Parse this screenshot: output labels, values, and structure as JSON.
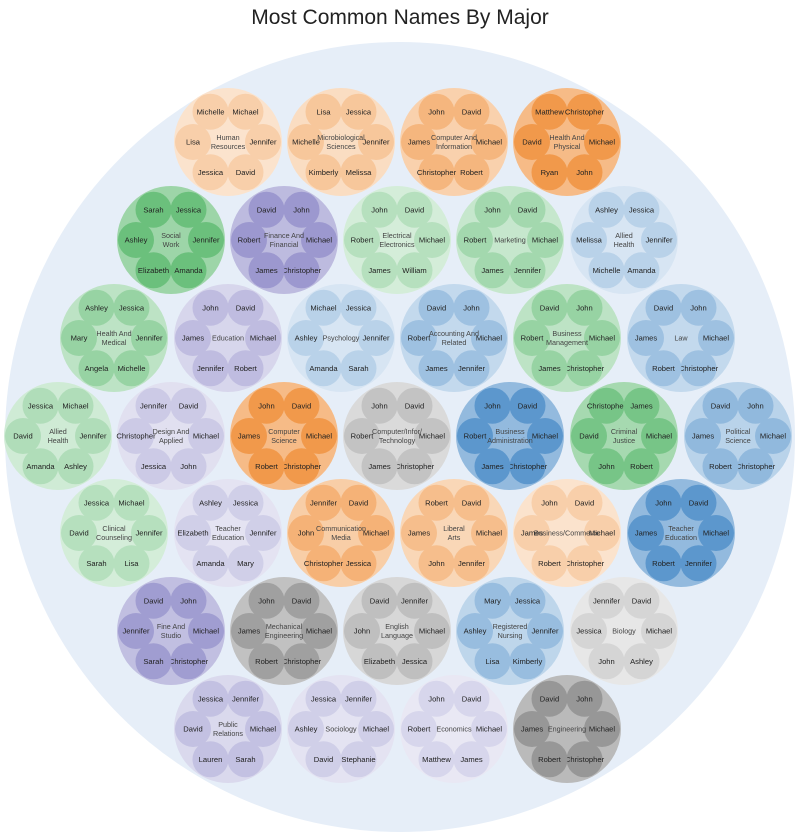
{
  "chart_data": {
    "type": "packed-bubble",
    "title": "Most Common Names By Major",
    "colors": {
      "background_circle": "#e6eef8",
      "orange": "#f0913c",
      "blue": "#4f8fc9",
      "green": "#58b86b",
      "purple": "#8a86c6",
      "gray": "#8a8a8a"
    },
    "majors": [
      {
        "label": "Human\nResources",
        "color": "orange",
        "intensity": 0.25,
        "names": [
          "Michelle",
          "Michael",
          "Jennifer",
          "David",
          "Jessica",
          "Lisa"
        ]
      },
      {
        "label": "Microbiological\nSciences",
        "color": "orange",
        "intensity": 0.35,
        "names": [
          "Lisa",
          "Jessica",
          "Jennifer",
          "Melissa",
          "Kimberly",
          "Michelle"
        ]
      },
      {
        "label": "Computer And\nInformation",
        "color": "orange",
        "intensity": 0.55,
        "names": [
          "John",
          "David",
          "Michael",
          "Robert",
          "Christopher",
          "James"
        ]
      },
      {
        "label": "Health And\nPhysical",
        "color": "orange",
        "intensity": 0.9,
        "names": [
          "Matthew",
          "Christopher",
          "Michael",
          "John",
          "Ryan",
          "David"
        ]
      },
      {
        "label": "Social\nWork",
        "color": "green",
        "intensity": 0.85,
        "names": [
          "Sarah",
          "Jessica",
          "Jennifer",
          "Amanda",
          "Elizabeth",
          "Ashley"
        ]
      },
      {
        "label": "Finance And\nFinancial",
        "color": "purple",
        "intensity": 0.8,
        "names": [
          "David",
          "John",
          "Michael",
          "Christopher",
          "James",
          "Robert"
        ]
      },
      {
        "label": "Electrical\nElectronics",
        "color": "green",
        "intensity": 0.25,
        "names": [
          "John",
          "David",
          "Michael",
          "William",
          "James",
          "Robert"
        ]
      },
      {
        "label": "Marketing",
        "color": "green",
        "intensity": 0.4,
        "names": [
          "John",
          "David",
          "Michael",
          "Jennifer",
          "James",
          "Robert"
        ]
      },
      {
        "label": "Allied\nHealth",
        "color": "blue",
        "intensity": 0.2,
        "names": [
          "Ashley",
          "Jessica",
          "Jennifer",
          "Amanda",
          "Michelle",
          "Melissa"
        ]
      },
      {
        "label": "Health And\nMedical",
        "color": "green",
        "intensity": 0.5,
        "names": [
          "Ashley",
          "Jessica",
          "Jennifer",
          "Michelle",
          "Angela",
          "Mary"
        ]
      },
      {
        "label": "Education",
        "color": "purple",
        "intensity": 0.4,
        "names": [
          "John",
          "David",
          "Michael",
          "Robert",
          "Jennifer",
          "James"
        ]
      },
      {
        "label": "Psychology",
        "color": "blue",
        "intensity": 0.2,
        "names": [
          "Michael",
          "Jessica",
          "Jennifer",
          "Sarah",
          "Amanda",
          "Ashley"
        ]
      },
      {
        "label": "Accounting And\nRelated",
        "color": "blue",
        "intensity": 0.4,
        "names": [
          "David",
          "John",
          "Michael",
          "Jennifer",
          "James",
          "Robert"
        ]
      },
      {
        "label": "Business\nManagement",
        "color": "green",
        "intensity": 0.5,
        "names": [
          "David",
          "John",
          "Michael",
          "Christopher",
          "James",
          "Robert"
        ]
      },
      {
        "label": "Law",
        "color": "blue",
        "intensity": 0.4,
        "names": [
          "David",
          "John",
          "Michael",
          "Christopher",
          "Robert",
          "James"
        ]
      },
      {
        "label": "Allied\nHealth",
        "color": "green",
        "intensity": 0.3,
        "names": [
          "Jessica",
          "Michael",
          "Jennifer",
          "Ashley",
          "Amanda",
          "David"
        ]
      },
      {
        "label": "Design And\nApplied",
        "color": "purple",
        "intensity": 0.25,
        "names": [
          "Jennifer",
          "David",
          "Michael",
          "John",
          "Jessica",
          "Christopher"
        ]
      },
      {
        "label": "Computer\nScience",
        "color": "orange",
        "intensity": 0.9,
        "names": [
          "John",
          "David",
          "Michael",
          "Christopher",
          "Robert",
          "James"
        ]
      },
      {
        "label": "Computer/Infor/\nTechnology",
        "color": "gray",
        "intensity": 0.35,
        "names": [
          "John",
          "David",
          "Michael",
          "Christopher",
          "James",
          "Robert"
        ]
      },
      {
        "label": "Business\nAdministration",
        "color": "blue",
        "intensity": 0.9,
        "names": [
          "John",
          "David",
          "Michael",
          "Christopher",
          "James",
          "Robert"
        ]
      },
      {
        "label": "Criminal\nJustice",
        "color": "green",
        "intensity": 0.75,
        "names": [
          "Christopher",
          "James",
          "Michael",
          "Robert",
          "John",
          "David"
        ]
      },
      {
        "label": "Political\nScience",
        "color": "blue",
        "intensity": 0.5,
        "names": [
          "David",
          "John",
          "Michael",
          "Christopher",
          "Robert",
          "James"
        ]
      },
      {
        "label": "Clinical\nCounseling",
        "color": "green",
        "intensity": 0.25,
        "names": [
          "Jessica",
          "Michael",
          "Jennifer",
          "Lisa",
          "Sarah",
          "David"
        ]
      },
      {
        "label": "Teacher\nEducation",
        "color": "purple",
        "intensity": 0.2,
        "names": [
          "Ashley",
          "Jessica",
          "Jennifer",
          "Mary",
          "Amanda",
          "Elizabeth"
        ]
      },
      {
        "label": "Communication\nMedia",
        "color": "orange",
        "intensity": 0.6,
        "names": [
          "Jennifer",
          "David",
          "Michael",
          "Jessica",
          "Christopher",
          "John"
        ]
      },
      {
        "label": "Liberal\nArts",
        "color": "orange",
        "intensity": 0.45,
        "names": [
          "Robert",
          "David",
          "Michael",
          "Jennifer",
          "John",
          "James"
        ]
      },
      {
        "label": "Business/Commerce",
        "color": "orange",
        "intensity": 0.25,
        "names": [
          "John",
          "David",
          "Michael",
          "Christopher",
          "Robert",
          "James"
        ]
      },
      {
        "label": "Teacher\nEducation",
        "color": "blue",
        "intensity": 0.9,
        "names": [
          "John",
          "David",
          "Michael",
          "Jennifer",
          "Robert",
          "James"
        ]
      },
      {
        "label": "Fine And\nStudio",
        "color": "purple",
        "intensity": 0.75,
        "names": [
          "David",
          "John",
          "Michael",
          "Christopher",
          "Sarah",
          "Jennifer"
        ]
      },
      {
        "label": "Mechanical\nEngineering",
        "color": "gray",
        "intensity": 0.75,
        "names": [
          "John",
          "David",
          "Michael",
          "Christopher",
          "Robert",
          "James"
        ]
      },
      {
        "label": "English\nLanguage",
        "color": "gray",
        "intensity": 0.4,
        "names": [
          "David",
          "Jennifer",
          "Michael",
          "Jessica",
          "Elizabeth",
          "John"
        ]
      },
      {
        "label": "Registered\nNursing",
        "color": "blue",
        "intensity": 0.45,
        "names": [
          "Mary",
          "Jessica",
          "Jennifer",
          "Kimberly",
          "Lisa",
          "Ashley"
        ]
      },
      {
        "label": "Biology",
        "color": "gray",
        "intensity": 0.15,
        "names": [
          "Jennifer",
          "David",
          "Michael",
          "Ashley",
          "John",
          "Jessica"
        ]
      },
      {
        "label": "Public\nRelations",
        "color": "purple",
        "intensity": 0.35,
        "names": [
          "Jessica",
          "Jennifer",
          "Michael",
          "Sarah",
          "Lauren",
          "David"
        ]
      },
      {
        "label": "Sociology",
        "color": "purple",
        "intensity": 0.2,
        "names": [
          "Jessica",
          "Jennifer",
          "Michael",
          "Stephanie",
          "David",
          "Ashley"
        ]
      },
      {
        "label": "Economics",
        "color": "purple",
        "intensity": 0.12,
        "names": [
          "John",
          "David",
          "Michael",
          "James",
          "Matthew",
          "Robert"
        ]
      },
      {
        "label": "Engineering",
        "color": "gray",
        "intensity": 0.85,
        "names": [
          "David",
          "John",
          "Michael",
          "Christopher",
          "Robert",
          "James"
        ]
      }
    ]
  }
}
